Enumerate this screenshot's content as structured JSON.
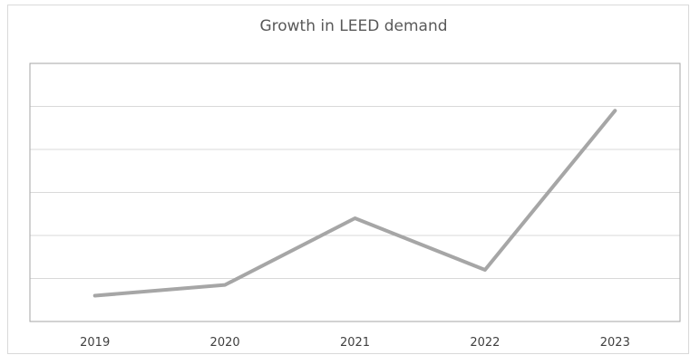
{
  "chart_data": {
    "type": "line",
    "title": "Growth in LEED demand",
    "xlabel": "",
    "ylabel": "",
    "categories": [
      "2019",
      "2020",
      "2021",
      "2022",
      "2023"
    ],
    "series": [
      {
        "values": [
          0.6,
          0.85,
          2.4,
          1.2,
          4.9
        ]
      }
    ],
    "ylim": [
      0,
      6
    ],
    "grid": true,
    "y_tick_labels_visible": false,
    "legend": "none",
    "colors": {
      "line": "#a6a6a6",
      "grid": "#d9d9d9",
      "plot_border": "#a6a6a6"
    }
  }
}
